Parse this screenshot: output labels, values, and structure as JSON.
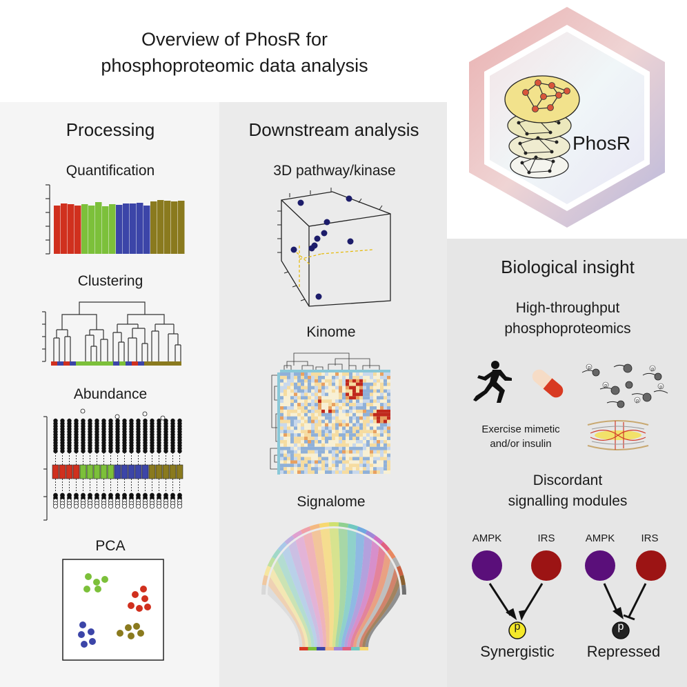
{
  "title": {
    "line1": "Overview of PhosR for",
    "line2": "phosphoproteomic data analysis"
  },
  "logo": {
    "label": "PhosR",
    "colors": {
      "ring_left": "#e6a8a8",
      "ring_right": "#b8b8d8",
      "disc": "#f2e28c",
      "node": "#d8553a"
    }
  },
  "processing": {
    "heading": "Processing",
    "quantification": {
      "label": "Quantification"
    },
    "clustering": {
      "label": "Clustering"
    },
    "abundance": {
      "label": "Abundance"
    },
    "pca": {
      "label": "PCA"
    }
  },
  "downstream": {
    "heading": "Downstream analysis",
    "pathway": {
      "label": "3D pathway/kinase"
    },
    "kinome": {
      "label": "Kinome"
    },
    "signalome": {
      "label": "Signalome"
    }
  },
  "insight": {
    "heading": "Biological insight",
    "subheading_line1": "High-throughput",
    "subheading_line2": "phosphoproteomics",
    "exercise_line1": "Exercise mimetic",
    "exercise_line2": "and/or insulin",
    "discordant_line1": "Discordant",
    "discordant_line2": "signalling modules",
    "module1": {
      "a": "AMPK",
      "b": "IRS",
      "p": "p",
      "outcome": "Synergistic"
    },
    "module2": {
      "a": "AMPK",
      "b": "IRS",
      "p": "p",
      "outcome": "Repressed"
    }
  },
  "colors": {
    "red": "#d0301e",
    "green": "#7cc03a",
    "blue": "#3c45a8",
    "olive": "#8a7a1e",
    "purple": "#5a0f7a",
    "darkred": "#9c1414",
    "yellow": "#f4e82a"
  }
}
